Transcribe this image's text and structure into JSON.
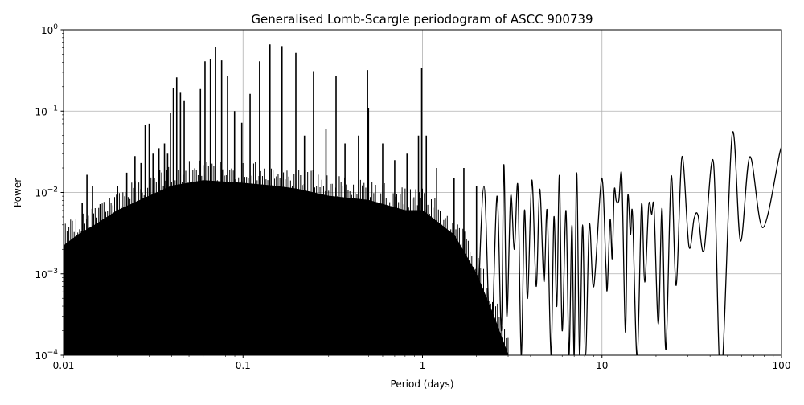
{
  "chart_data": {
    "type": "line",
    "title": "Generalised Lomb-Scargle periodogram of ASCC 900739",
    "xlabel": "Period (days)",
    "ylabel": "Power",
    "xscale": "log",
    "yscale": "log",
    "xlim": [
      0.01,
      100
    ],
    "ylim": [
      0.0001,
      1
    ],
    "grid": true,
    "line_color": "#000000",
    "grid_color": "#b0b0b0",
    "x_ticks": [
      {
        "value": 0.01,
        "label": "0.01"
      },
      {
        "value": 0.1,
        "label": "0.1"
      },
      {
        "value": 1,
        "label": "1"
      },
      {
        "value": 10,
        "label": "10"
      },
      {
        "value": 100,
        "label": "100"
      }
    ],
    "y_ticks": [
      {
        "value": 0.0001,
        "base": "10",
        "exp": "−4"
      },
      {
        "value": 0.001,
        "base": "10",
        "exp": "−3"
      },
      {
        "value": 0.01,
        "base": "10",
        "exp": "−2"
      },
      {
        "value": 0.1,
        "base": "10",
        "exp": "−1"
      },
      {
        "value": 1,
        "base": "10",
        "exp": "0"
      }
    ],
    "dense_noise_envelope": [
      [
        0.01,
        0.0022
      ],
      [
        0.012,
        0.003
      ],
      [
        0.015,
        0.004
      ],
      [
        0.02,
        0.006
      ],
      [
        0.03,
        0.009
      ],
      [
        0.04,
        0.012
      ],
      [
        0.06,
        0.014
      ],
      [
        0.1,
        0.013
      ],
      [
        0.15,
        0.012
      ],
      [
        0.2,
        0.011
      ],
      [
        0.3,
        0.009
      ],
      [
        0.5,
        0.008
      ],
      [
        0.8,
        0.006
      ],
      [
        1.0,
        0.006
      ],
      [
        1.5,
        0.003
      ],
      [
        2.0,
        0.001
      ],
      [
        2.5,
        0.0003
      ],
      [
        3.0,
        0.0001
      ]
    ],
    "peaks": [
      [
        0.0127,
        0.0075
      ],
      [
        0.0135,
        0.0165
      ],
      [
        0.0145,
        0.012
      ],
      [
        0.016,
        0.0072
      ],
      [
        0.018,
        0.0085
      ],
      [
        0.02,
        0.012
      ],
      [
        0.0225,
        0.0175
      ],
      [
        0.025,
        0.028
      ],
      [
        0.027,
        0.023
      ],
      [
        0.0285,
        0.067
      ],
      [
        0.03,
        0.07
      ],
      [
        0.0315,
        0.03
      ],
      [
        0.034,
        0.035
      ],
      [
        0.0365,
        0.04
      ],
      [
        0.038,
        0.03
      ],
      [
        0.0394,
        0.095
      ],
      [
        0.0409,
        0.19
      ],
      [
        0.0427,
        0.26
      ],
      [
        0.0448,
        0.168
      ],
      [
        0.047,
        0.133
      ],
      [
        0.0579,
        0.187
      ],
      [
        0.0614,
        0.41
      ],
      [
        0.0658,
        0.44
      ],
      [
        0.0703,
        0.62
      ],
      [
        0.076,
        0.42
      ],
      [
        0.082,
        0.27
      ],
      [
        0.0897,
        0.1
      ],
      [
        0.0984,
        0.072
      ],
      [
        0.1095,
        0.163
      ],
      [
        0.1237,
        0.41
      ],
      [
        0.1413,
        0.66
      ],
      [
        0.1649,
        0.63
      ],
      [
        0.197,
        0.52
      ],
      [
        0.22,
        0.05
      ],
      [
        0.2471,
        0.31
      ],
      [
        0.29,
        0.06
      ],
      [
        0.33,
        0.27
      ],
      [
        0.37,
        0.04
      ],
      [
        0.44,
        0.05
      ],
      [
        0.494,
        0.32
      ],
      [
        0.5,
        0.11
      ],
      [
        0.6,
        0.04
      ],
      [
        0.7,
        0.025
      ],
      [
        0.82,
        0.03
      ],
      [
        0.95,
        0.05
      ],
      [
        0.99,
        0.34
      ],
      [
        1.05,
        0.05
      ],
      [
        1.2,
        0.02
      ],
      [
        1.5,
        0.015
      ],
      [
        1.7,
        0.02
      ],
      [
        2.0,
        0.012
      ]
    ],
    "long_period_curve": [
      [
        2.0,
        0.0001
      ],
      [
        2.2,
        0.012
      ],
      [
        2.4,
        0.0001
      ],
      [
        2.6,
        0.009
      ],
      [
        2.75,
        0.0002
      ],
      [
        2.84,
        0.022
      ],
      [
        2.95,
        0.0003
      ],
      [
        3.1,
        0.009
      ],
      [
        3.25,
        0.002
      ],
      [
        3.4,
        0.012
      ],
      [
        3.55,
        0.0001
      ],
      [
        3.7,
        0.006
      ],
      [
        3.85,
        0.0005
      ],
      [
        4.07,
        0.0142
      ],
      [
        4.3,
        0.0007
      ],
      [
        4.5,
        0.011
      ],
      [
        4.75,
        0.0008
      ],
      [
        4.95,
        0.006
      ],
      [
        5.2,
        0.0001
      ],
      [
        5.4,
        0.005
      ],
      [
        5.6,
        0.0004
      ],
      [
        5.79,
        0.0162
      ],
      [
        6.0,
        0.0002
      ],
      [
        6.3,
        0.006
      ],
      [
        6.55,
        0.0001
      ],
      [
        6.8,
        0.004
      ],
      [
        7.0,
        0.0001
      ],
      [
        7.23,
        0.0175
      ],
      [
        7.5,
        0.0001
      ],
      [
        7.8,
        0.004
      ],
      [
        8.1,
        0.0001
      ],
      [
        8.5,
        0.004
      ],
      [
        9.0,
        0.0007
      ],
      [
        9.96,
        0.015
      ],
      [
        10.5,
        0.00133
      ],
      [
        10.7,
        0.00065
      ],
      [
        11.1,
        0.00464
      ],
      [
        11.4,
        0.00154
      ],
      [
        11.7,
        0.0105
      ],
      [
        12.0,
        0.0079
      ],
      [
        12.4,
        0.0079
      ],
      [
        12.9,
        0.015
      ],
      [
        13.5,
        0.000192
      ],
      [
        13.9,
        0.00863
      ],
      [
        14.4,
        0.00305
      ],
      [
        14.8,
        0.00531
      ],
      [
        15.7,
        9e-05
      ],
      [
        16.6,
        0.00714
      ],
      [
        17.3,
        0.00079
      ],
      [
        18.2,
        0.00687
      ],
      [
        18.9,
        0.0054
      ],
      [
        19.5,
        0.00628
      ],
      [
        20.6,
        0.00024
      ],
      [
        21.6,
        0.00637
      ],
      [
        22.7,
        0.000117
      ],
      [
        24.3,
        0.0158
      ],
      [
        25.9,
        0.00072
      ],
      [
        27.9,
        0.0275
      ],
      [
        30.5,
        0.00217
      ],
      [
        32.6,
        0.0048
      ],
      [
        34.3,
        0.0052
      ],
      [
        37.0,
        0.00194
      ],
      [
        41.8,
        0.0233
      ],
      [
        46.0,
        5e-05
      ],
      [
        53.1,
        0.0516
      ],
      [
        59.1,
        0.00253
      ],
      [
        66.7,
        0.0275
      ],
      [
        78.7,
        0.00369
      ],
      [
        98.0,
        0.0313
      ],
      [
        100,
        0.031
      ]
    ]
  }
}
